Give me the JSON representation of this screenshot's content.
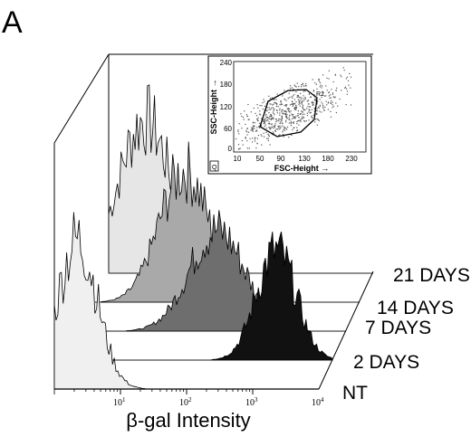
{
  "panel_label": "A",
  "chart_data": {
    "type": "area",
    "style": "3d-offset-histograms",
    "xlabel": "β-gal Intensity",
    "x_scale": "log",
    "xlim": [
      1,
      10000
    ],
    "x_ticks": [
      {
        "base": "10",
        "exp": "1"
      },
      {
        "base": "10",
        "exp": "2"
      },
      {
        "base": "10",
        "exp": "3"
      },
      {
        "base": "10",
        "exp": "4"
      }
    ],
    "series": [
      {
        "name": "NT",
        "fill": "#f0f0f0",
        "peak_log10": 0.35,
        "width": 0.3
      },
      {
        "name": "2 DAYS",
        "fill": "#111111",
        "peak_log10": 3.15,
        "width": 0.3
      },
      {
        "name": "7 DAYS",
        "fill": "#6e6e6e",
        "peak_log10": 2.05,
        "width": 0.42
      },
      {
        "name": "14 DAYS",
        "fill": "#a9a9a9",
        "peak_log10": 1.35,
        "width": 0.38
      },
      {
        "name": "21 DAYS",
        "fill": "#e6e6e6",
        "peak_log10": 0.55,
        "width": 0.4
      }
    ],
    "inset": {
      "type": "scatter",
      "xlabel": "FSC-Height →",
      "ylabel": "SSC-Height →",
      "x_ticks": [
        "10",
        "50",
        "90",
        "130",
        "180",
        "230"
      ],
      "y_ticks": [
        "0",
        "60",
        "120",
        "180",
        "240"
      ],
      "gate_label": "R1",
      "corner_label": "Q"
    }
  }
}
